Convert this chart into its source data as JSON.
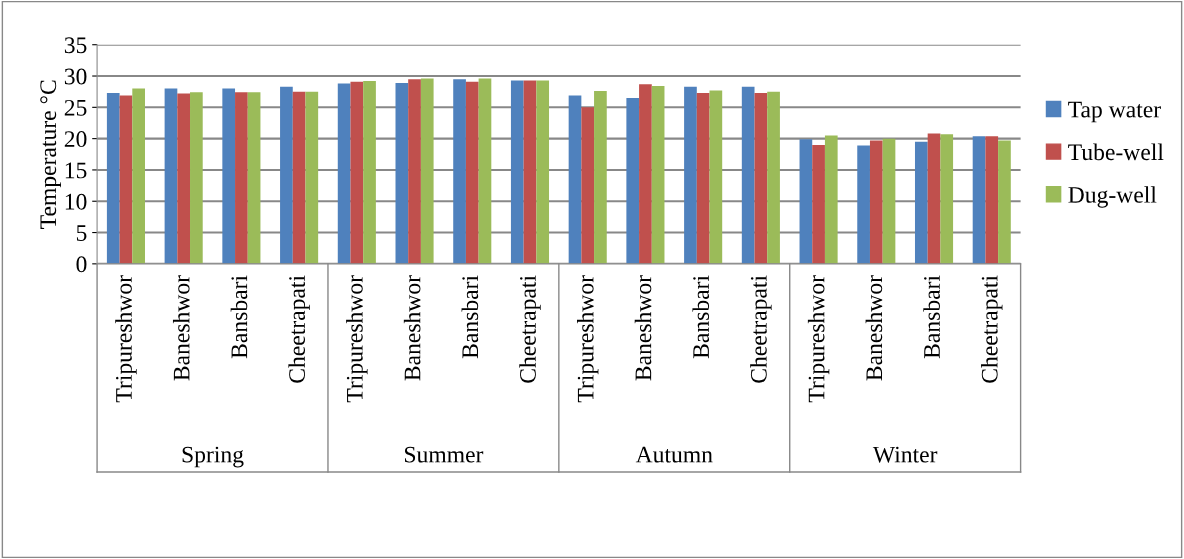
{
  "chart_data": {
    "type": "bar",
    "ylabel": "Temperature °C",
    "categories": [
      "Tripureshwor",
      "Baneshwor",
      "Bansbari",
      "Cheetrapati",
      "Tripureshwor",
      "Baneshwor",
      "Bansbari",
      "Cheetrapati",
      "Tripureshwor",
      "Baneshwor",
      "Bansbari",
      "Cheetrapati",
      "Tripureshwor",
      "Baneshwor",
      "Bansbari",
      "Cheetrapati"
    ],
    "annotations": [
      "Spring",
      "Summer",
      "Autumn",
      "Winter"
    ],
    "series": [
      {
        "name": "Tap water",
        "color": "#4f81bd",
        "values": [
          27.3,
          28.0,
          28.0,
          28.3,
          28.8,
          28.9,
          29.5,
          29.3,
          26.9,
          26.5,
          28.3,
          28.3,
          19.9,
          18.9,
          19.5,
          20.4
        ]
      },
      {
        "name": "Tube-well",
        "color": "#c0504d",
        "values": [
          26.9,
          27.2,
          27.4,
          27.5,
          29.1,
          29.5,
          29.1,
          29.3,
          25.0,
          28.7,
          27.3,
          27.3,
          19.0,
          19.7,
          20.8,
          20.4
        ]
      },
      {
        "name": "Dug-well",
        "color": "#9bbb59",
        "values": [
          28.0,
          27.4,
          27.4,
          27.5,
          29.2,
          29.6,
          29.6,
          29.3,
          27.6,
          28.4,
          27.7,
          27.5,
          20.5,
          20.0,
          20.7,
          19.7
        ]
      }
    ],
    "ylim": [
      0,
      35
    ],
    "yticks": [
      0,
      5,
      10,
      15,
      20,
      25,
      30,
      35
    ],
    "grid": "y",
    "legend": "right"
  }
}
